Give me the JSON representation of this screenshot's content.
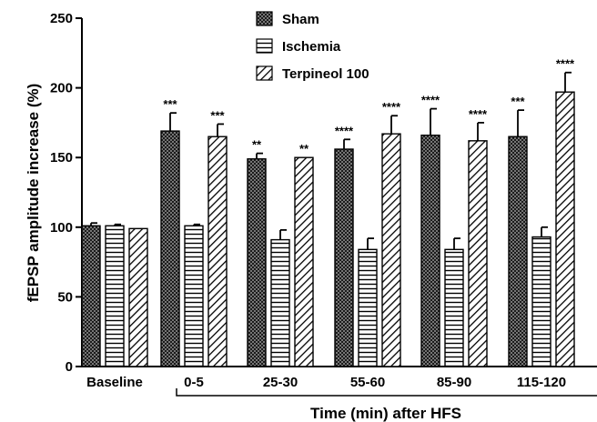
{
  "chart_data": {
    "type": "bar",
    "ylabel": "fEPSP amplitude increase (%)",
    "xlabel": "Time (min) after HFS",
    "ylim": [
      0,
      250
    ],
    "yticks": [
      0,
      50,
      100,
      150,
      200,
      250
    ],
    "categories": [
      "Baseline",
      "0-5",
      "25-30",
      "55-60",
      "85-90",
      "115-120"
    ],
    "legend_position": "top-center",
    "grid": false,
    "series": [
      {
        "name": "Sham",
        "pattern": "crosshatch",
        "values": [
          101,
          169,
          149,
          156,
          166,
          165
        ],
        "errors": [
          2,
          13,
          4,
          7,
          19,
          19
        ],
        "significance": [
          "",
          "***",
          "**",
          "****",
          "****",
          "***"
        ]
      },
      {
        "name": "Ischemia",
        "pattern": "horizontal-lines",
        "values": [
          101,
          101,
          91,
          84,
          84,
          93
        ],
        "errors": [
          1,
          1,
          7,
          8,
          8,
          7
        ],
        "significance": [
          "",
          "",
          "",
          "",
          "",
          ""
        ]
      },
      {
        "name": "Terpineol 100",
        "pattern": "diagonal-lines",
        "values": [
          99,
          165,
          150,
          167,
          162,
          197
        ],
        "errors": [
          0,
          9,
          0,
          13,
          13,
          14
        ],
        "significance": [
          "",
          "***",
          "**",
          "****",
          "****",
          "****"
        ]
      }
    ]
  }
}
